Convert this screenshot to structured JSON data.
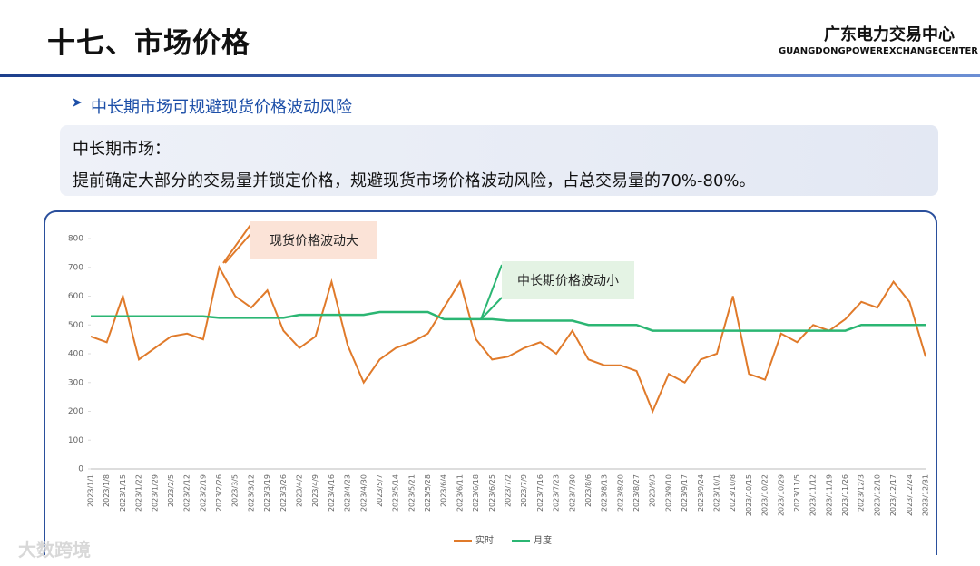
{
  "header": {
    "title": "十七、市场价格",
    "org": "广东电力交易中心",
    "org_en": "GUANGDONGPOWEREXCHANGECENTER"
  },
  "section_title": "中长期市场可规避现货价格波动风险",
  "callout": {
    "heading": "中长期市场：",
    "text": "提前确定大部分的交易量并锁定价格，规避现货市场价格波动风险，占总交易量的70%-80%。"
  },
  "watermark": "大数跨境",
  "chart_data": {
    "type": "line",
    "categories": [
      "2023/1/1",
      "2023/1/8",
      "2023/1/15",
      "2023/1/22",
      "2023/1/29",
      "2023/2/5",
      "2023/2/12",
      "2023/2/19",
      "2023/2/26",
      "2023/3/5",
      "2023/3/12",
      "2023/3/19",
      "2023/3/26",
      "2023/4/2",
      "2023/4/9",
      "2023/4/16",
      "2023/4/23",
      "2023/4/30",
      "2023/5/7",
      "2023/5/14",
      "2023/5/21",
      "2023/5/28",
      "2023/6/4",
      "2023/6/11",
      "2023/6/18",
      "2023/6/25",
      "2023/7/2",
      "2023/7/9",
      "2023/7/16",
      "2023/7/23",
      "2023/7/30",
      "2023/8/6",
      "2023/8/13",
      "2023/8/20",
      "2023/8/27",
      "2023/9/3",
      "2023/9/10",
      "2023/9/17",
      "2023/9/24",
      "2023/10/1",
      "2023/10/8",
      "2023/10/15",
      "2023/10/22",
      "2023/10/29",
      "2023/11/5",
      "2023/11/12",
      "2023/11/19",
      "2023/11/26",
      "2023/12/3",
      "2023/12/10",
      "2023/12/17",
      "2023/12/24",
      "2023/12/31"
    ],
    "series": [
      {
        "name": "实时",
        "color": "#e07a2a",
        "values": [
          460,
          440,
          600,
          380,
          420,
          460,
          470,
          450,
          700,
          600,
          560,
          620,
          480,
          420,
          460,
          650,
          430,
          300,
          380,
          420,
          440,
          470,
          560,
          650,
          450,
          380,
          390,
          420,
          440,
          400,
          480,
          380,
          360,
          360,
          340,
          200,
          330,
          300,
          380,
          400,
          600,
          330,
          310,
          470,
          440,
          500,
          480,
          520,
          580,
          560,
          650,
          580,
          390
        ]
      },
      {
        "name": "月度",
        "color": "#2bb673",
        "values": [
          530,
          530,
          530,
          530,
          530,
          530,
          530,
          530,
          525,
          525,
          525,
          525,
          525,
          535,
          535,
          535,
          535,
          535,
          545,
          545,
          545,
          545,
          520,
          520,
          520,
          520,
          515,
          515,
          515,
          515,
          515,
          500,
          500,
          500,
          500,
          480,
          480,
          480,
          480,
          480,
          480,
          480,
          480,
          480,
          480,
          480,
          480,
          480,
          500,
          500,
          500,
          500,
          500
        ]
      }
    ],
    "ylim": [
      0,
      800
    ],
    "yticks": [
      0,
      100,
      200,
      300,
      400,
      500,
      600,
      700,
      800
    ],
    "grid": false,
    "legend": "bottom",
    "annotations": [
      "现货价格波动大",
      "中长期价格波动小"
    ]
  }
}
